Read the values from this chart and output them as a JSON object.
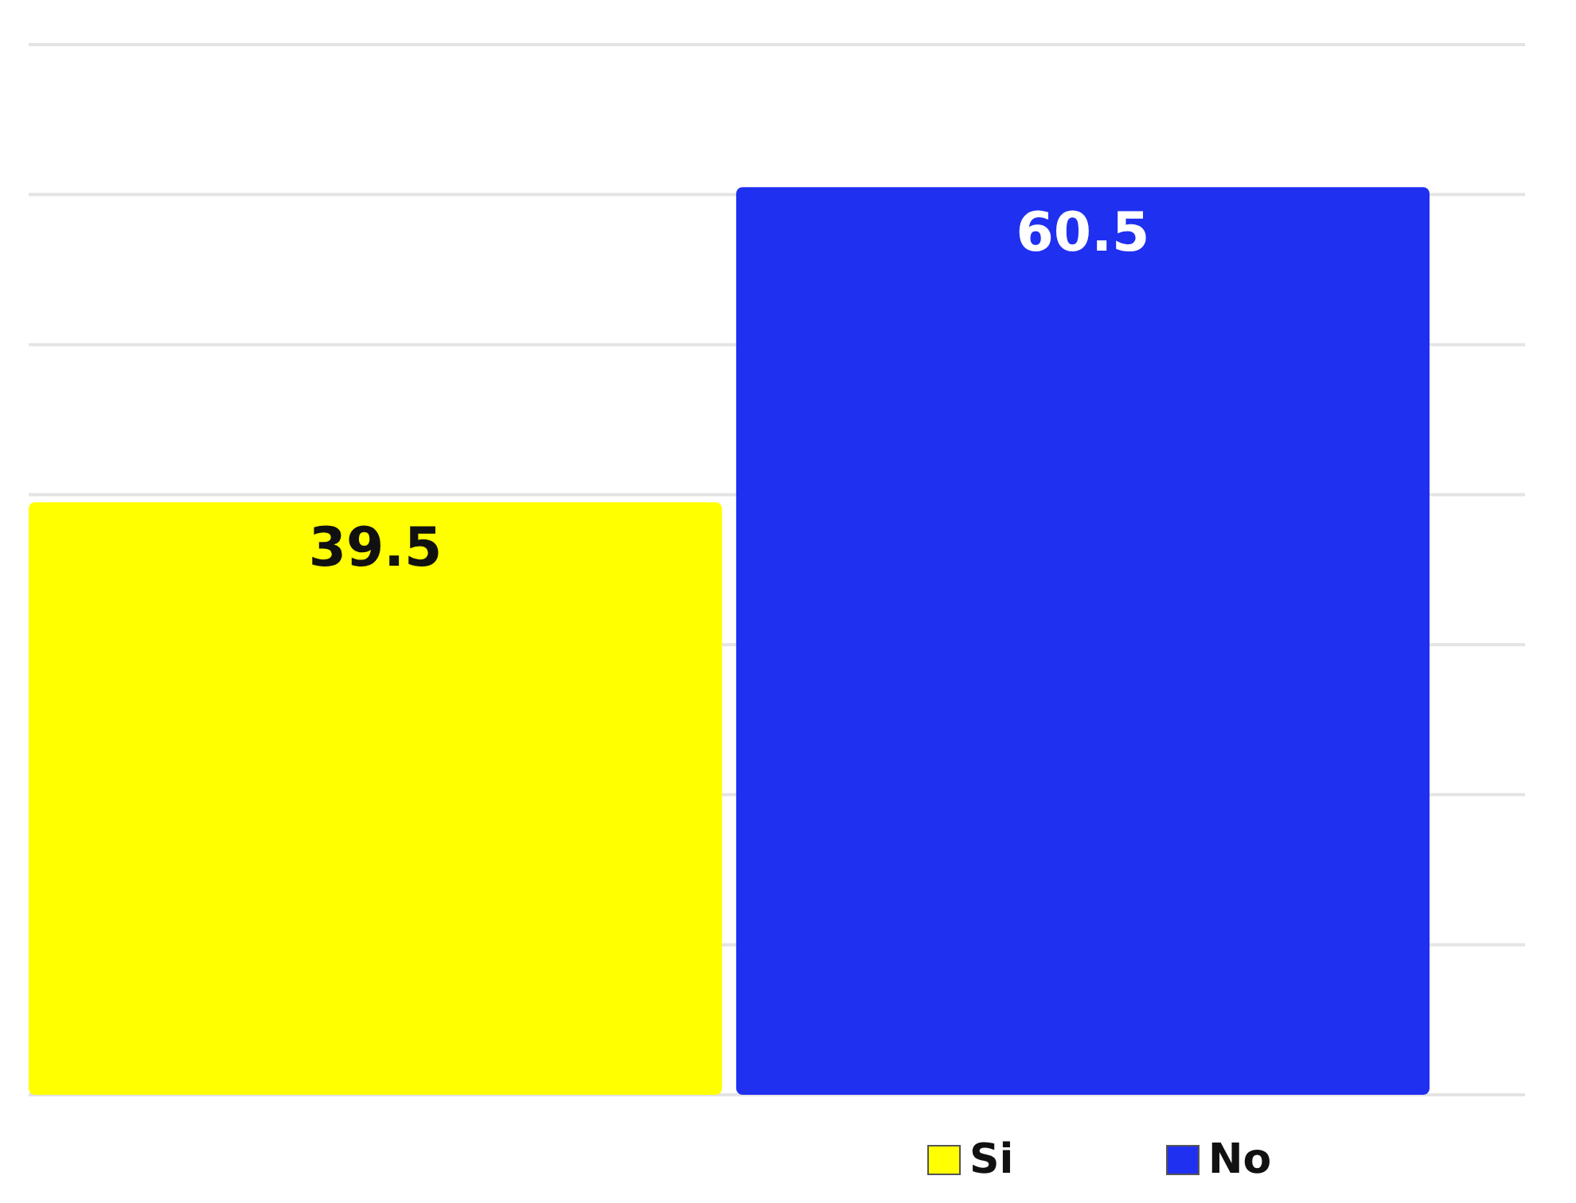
{
  "chart_data": {
    "type": "bar",
    "categories": [
      null
    ],
    "series": [
      {
        "name": "Si",
        "color": "#ffff00",
        "values": [
          39.5
        ]
      },
      {
        "name": "No",
        "color": "#2030f0",
        "values": [
          60.5
        ]
      }
    ],
    "ylim": [
      0,
      70
    ],
    "yticks": [
      {
        "value": 0,
        "label": null
      },
      {
        "value": 10,
        "label": null
      },
      {
        "value": 20,
        "label": null
      },
      {
        "value": 30,
        "label": null
      },
      {
        "value": 40,
        "label": null
      },
      {
        "value": 50,
        "label": null
      },
      {
        "value": 60,
        "label": null
      },
      {
        "value": 70,
        "label": null
      }
    ],
    "grid": "y",
    "data_labels": true,
    "legend": "bottom"
  }
}
